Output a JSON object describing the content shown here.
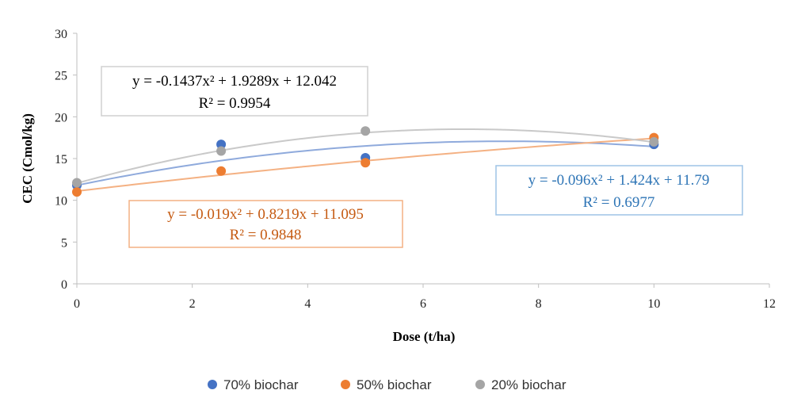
{
  "chart_data": {
    "type": "scatter",
    "xlabel": "Dose (t/ha)",
    "ylabel": "CEC (Cmol/kg)",
    "xlim": [
      0,
      12
    ],
    "ylim": [
      0,
      30
    ],
    "xticks": [
      "0",
      "2",
      "4",
      "6",
      "8",
      "10",
      "12"
    ],
    "yticks": [
      "0",
      "5",
      "10",
      "15",
      "20",
      "25",
      "30"
    ],
    "grid": false,
    "legend_position": "bottom",
    "series": [
      {
        "name": "70% biochar",
        "color": "#4472C4",
        "trend_color": "#8FAADC",
        "points": [
          [
            0,
            11.8
          ],
          [
            2.5,
            16.7
          ],
          [
            5,
            15.1
          ],
          [
            10,
            16.7
          ]
        ],
        "trendline": {
          "a": -0.096,
          "b": 1.424,
          "c": 11.79
        },
        "equation": "y = -0.096x² + 1.424x + 11.79",
        "r2": "R² = 0.6977"
      },
      {
        "name": "50% biochar",
        "color": "#ED7D31",
        "trend_color": "#F4B183",
        "points": [
          [
            0,
            11.0
          ],
          [
            2.5,
            13.5
          ],
          [
            5,
            14.5
          ],
          [
            10,
            17.5
          ]
        ],
        "trendline": {
          "a": -0.019,
          "b": 0.8219,
          "c": 11.095
        },
        "equation": "y = -0.019x² + 0.8219x + 11.095",
        "r2": "R² = 0.9848"
      },
      {
        "name": "20% biochar",
        "color": "#A5A5A5",
        "trend_color": "#C9C9C9",
        "points": [
          [
            0,
            12.1
          ],
          [
            2.5,
            15.9
          ],
          [
            5,
            18.3
          ],
          [
            10,
            17.0
          ]
        ],
        "trendline": {
          "a": -0.1437,
          "b": 1.9289,
          "c": 12.042
        },
        "equation": "y = -0.1437x² + 1.9289x + 12.042",
        "r2": "R² = 0.9954"
      }
    ]
  }
}
